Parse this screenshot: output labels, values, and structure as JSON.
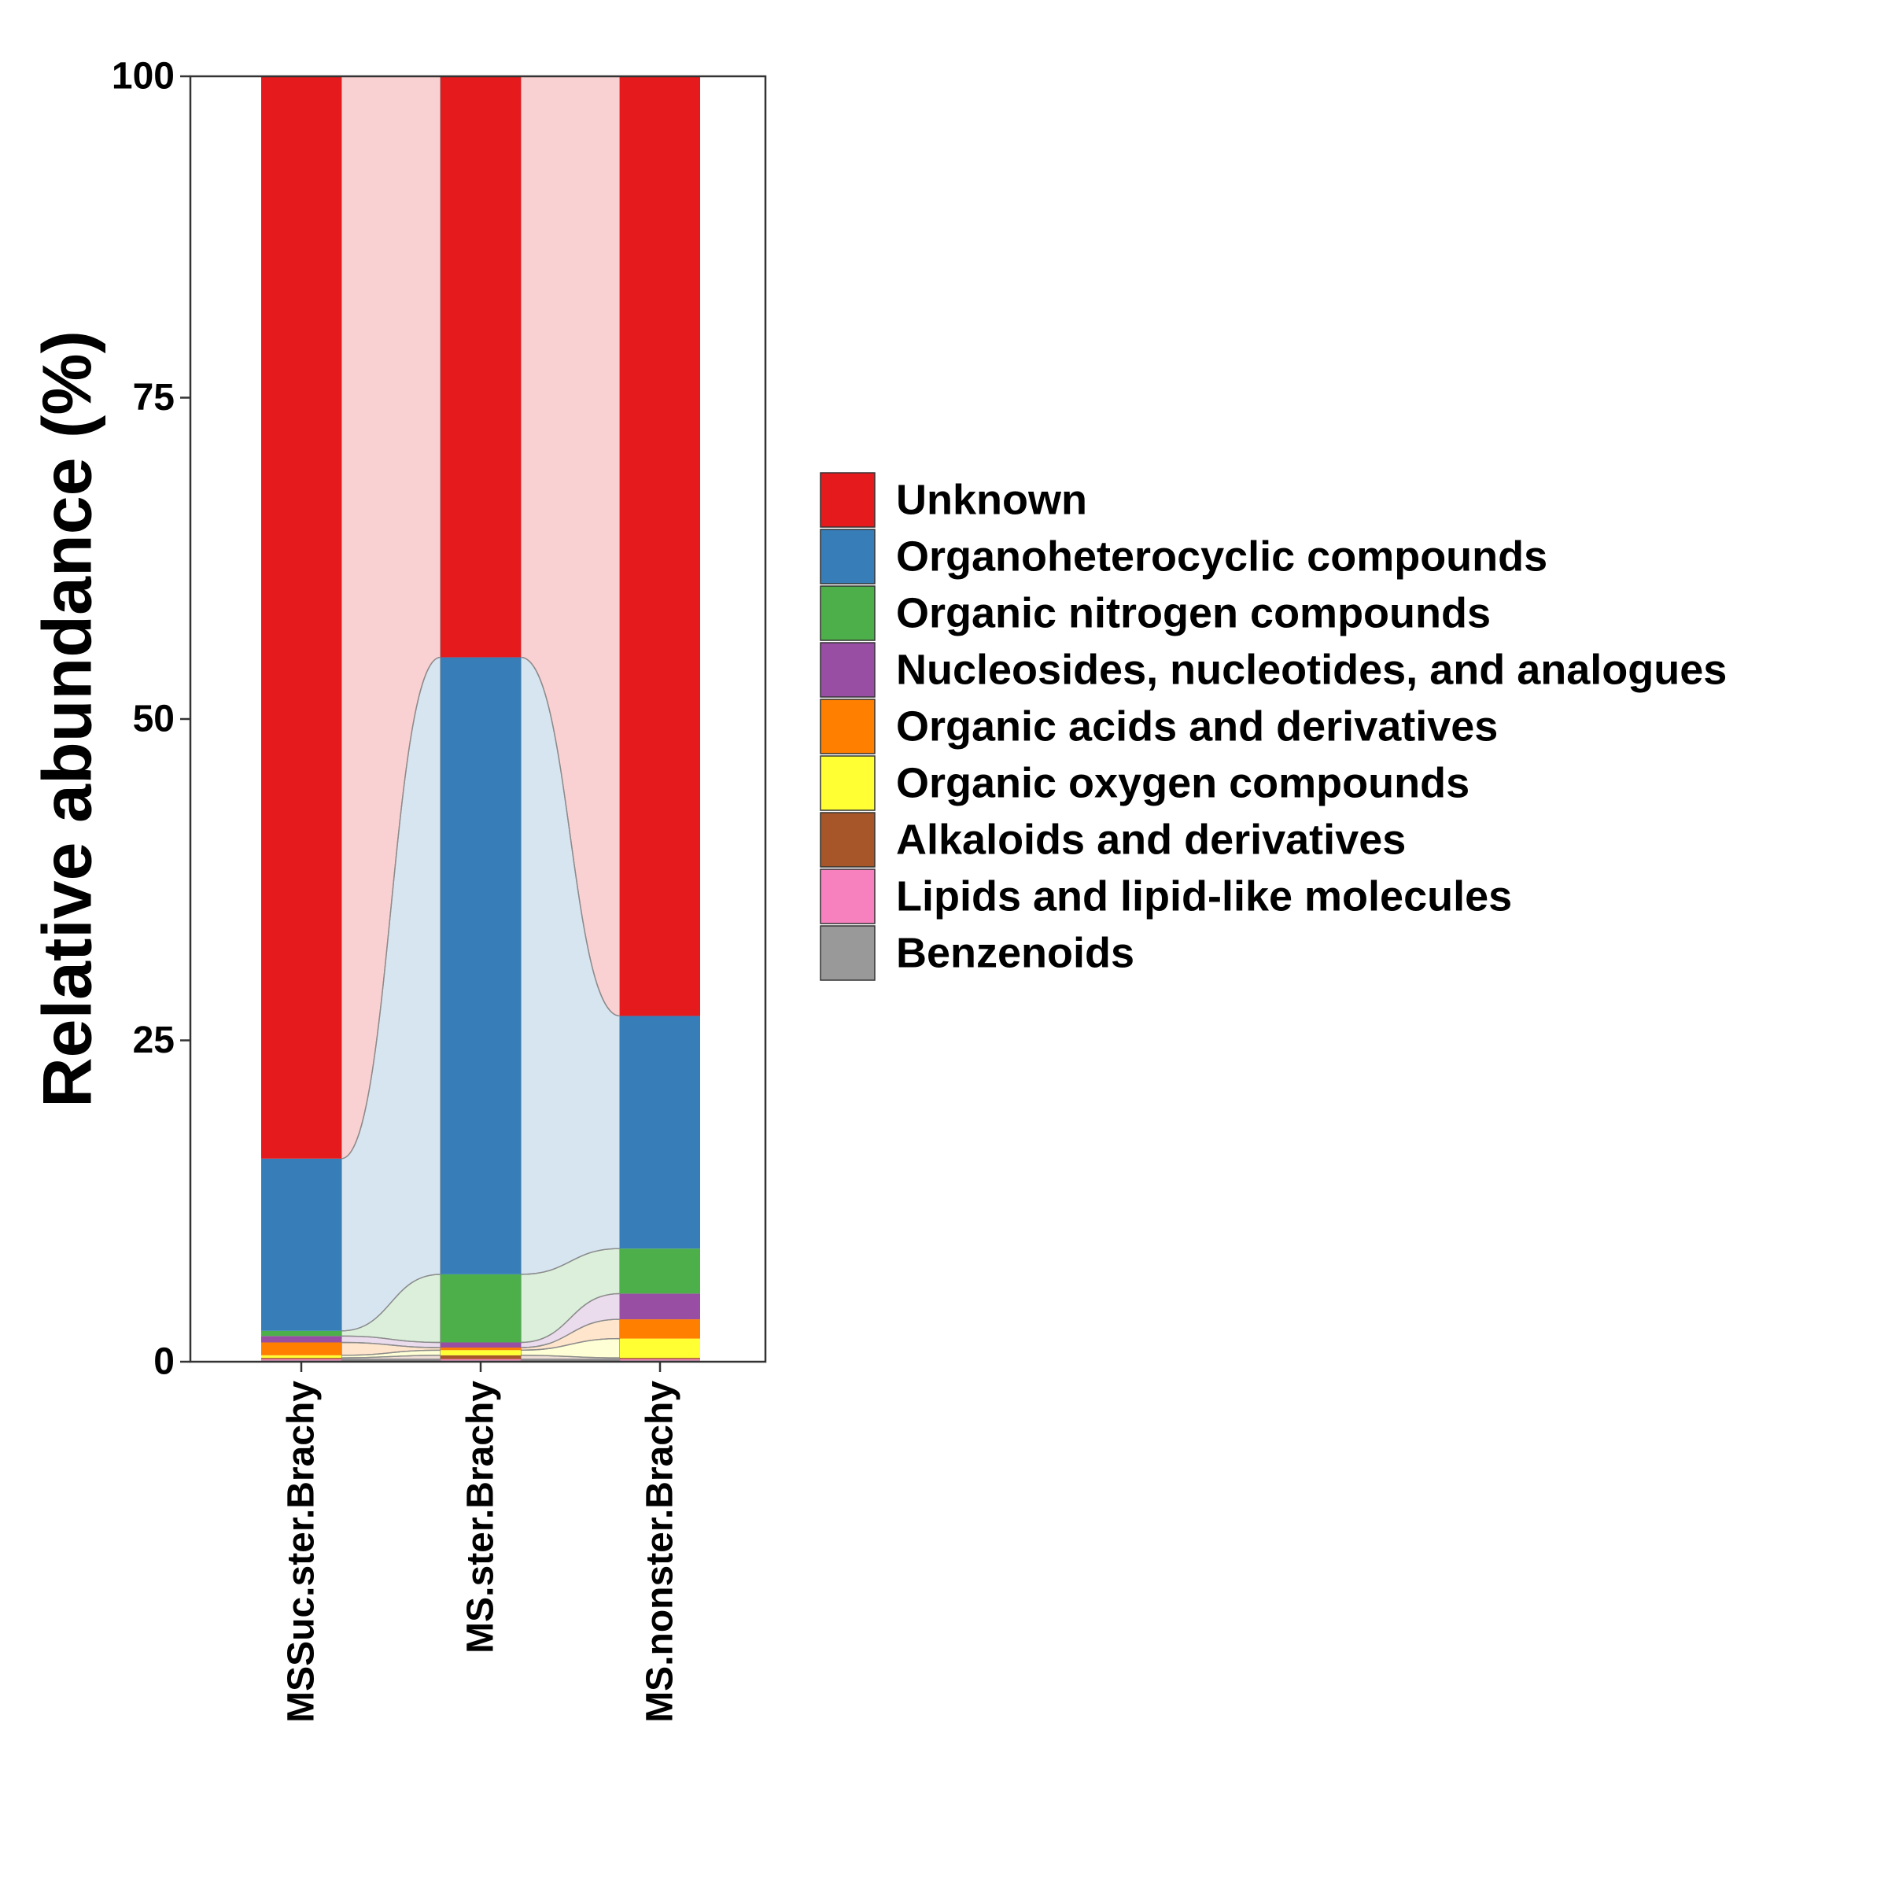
{
  "chart_data": {
    "type": "bar",
    "subtype": "stacked-alluvial",
    "ylabel": "Relative abundance (%)",
    "xlabel": "",
    "ylim": [
      0,
      100
    ],
    "yticks": [
      0,
      25,
      50,
      75,
      100
    ],
    "grid": false,
    "legend_position": "right",
    "categories": [
      "MSSuc.ster.Brachy",
      "MS.ster.Brachy",
      "MS.nonster.Brachy"
    ],
    "series": [
      {
        "name": "Benzenoids",
        "color": "#999999",
        "values": [
          0.1,
          0.1,
          0.1
        ]
      },
      {
        "name": "Lipids and lipid-like molecules",
        "color": "#F781BF",
        "values": [
          0.1,
          0.1,
          0.1
        ]
      },
      {
        "name": "Alkaloids and derivatives",
        "color": "#A65628",
        "values": [
          0.1,
          0.3,
          0.1
        ]
      },
      {
        "name": "Organic oxygen compounds",
        "color": "#FFFF33",
        "values": [
          0.2,
          0.4,
          1.5
        ]
      },
      {
        "name": "Organic acids and derivatives",
        "color": "#FF7F00",
        "values": [
          1.0,
          0.2,
          1.5
        ]
      },
      {
        "name": "Nucleosides, nucleotides, and analogues",
        "color": "#984EA3",
        "values": [
          0.5,
          0.4,
          2.0
        ]
      },
      {
        "name": "Organic nitrogen compounds",
        "color": "#4DAF4A",
        "values": [
          0.4,
          5.3,
          3.5
        ]
      },
      {
        "name": "Organoheterocyclic compounds",
        "color": "#377EB8",
        "values": [
          13.4,
          48.0,
          18.1
        ]
      },
      {
        "name": "Unknown",
        "color": "#E41A1C",
        "values": [
          84.2,
          45.2,
          73.1
        ]
      }
    ],
    "legend_order": [
      "Unknown",
      "Organoheterocyclic compounds",
      "Organic nitrogen compounds",
      "Nucleosides, nucleotides, and analogues",
      "Organic acids and derivatives",
      "Organic oxygen compounds",
      "Alkaloids and derivatives",
      "Lipids and lipid-like molecules",
      "Benzenoids"
    ]
  }
}
